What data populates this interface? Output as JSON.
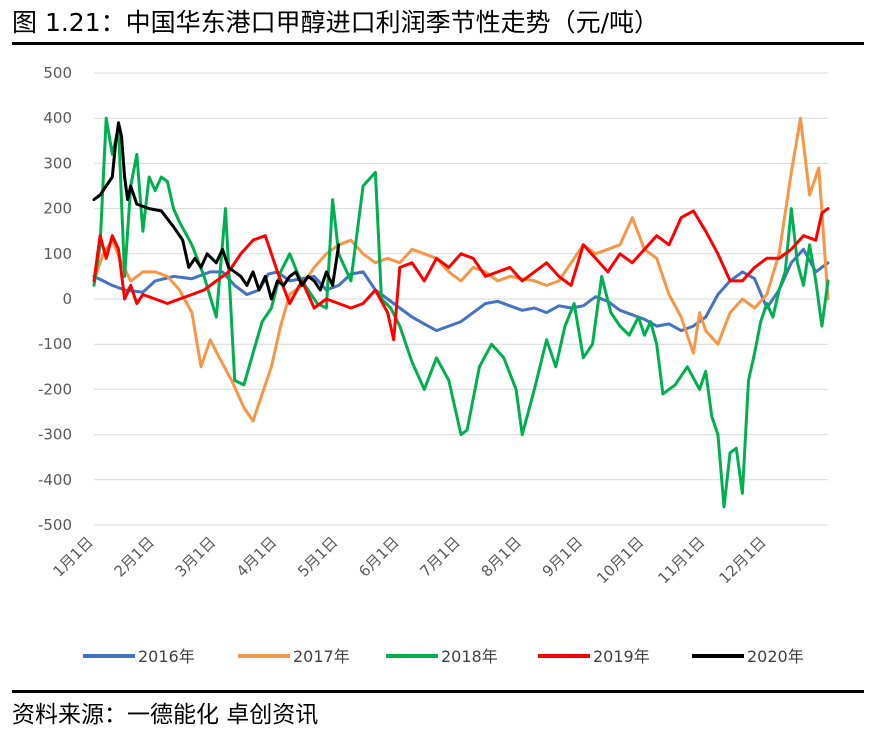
{
  "header": {
    "title": "图 1.21：中国华东港口甲醇进口利润季节性走势（元/吨）"
  },
  "footer": {
    "source": "资料来源：一德能化 卓创资讯"
  },
  "chart_data": {
    "type": "line",
    "title": "图 1.21：中国华东港口甲醇进口利润季节性走势（元/吨）",
    "xlabel": "",
    "ylabel": "",
    "ylim": [
      -500,
      500
    ],
    "yticks": [
      "500",
      "400",
      "300",
      "200",
      "100",
      "0",
      "-100",
      "-200",
      "-300",
      "-400",
      "-500"
    ],
    "xlim": [
      0,
      12
    ],
    "x_ticks": [
      "1月1日",
      "2月1日",
      "3月1日",
      "4月1日",
      "5月1日",
      "6月1日",
      "7月1日",
      "8月1日",
      "9月1日",
      "10月1日",
      "11月1日",
      "12月1日"
    ],
    "x_unit": "months elapsed since 1月1日",
    "grid": "horizontal",
    "legend_position": "bottom",
    "series": [
      {
        "name": "2016年",
        "color": "#4472C4",
        "points": [
          [
            0.0,
            50
          ],
          [
            0.15,
            40
          ],
          [
            0.3,
            30
          ],
          [
            0.5,
            20
          ],
          [
            0.8,
            15
          ],
          [
            1.0,
            40
          ],
          [
            1.3,
            50
          ],
          [
            1.6,
            45
          ],
          [
            1.9,
            60
          ],
          [
            2.1,
            60
          ],
          [
            2.3,
            30
          ],
          [
            2.5,
            10
          ],
          [
            2.7,
            20
          ],
          [
            2.85,
            55
          ],
          [
            3.0,
            60
          ],
          [
            3.2,
            40
          ],
          [
            3.4,
            45
          ],
          [
            3.6,
            50
          ],
          [
            3.8,
            20
          ],
          [
            4.0,
            30
          ],
          [
            4.2,
            55
          ],
          [
            4.4,
            60
          ],
          [
            4.6,
            20
          ],
          [
            4.8,
            0
          ],
          [
            5.0,
            -20
          ],
          [
            5.2,
            -40
          ],
          [
            5.4,
            -55
          ],
          [
            5.6,
            -70
          ],
          [
            5.8,
            -60
          ],
          [
            6.0,
            -50
          ],
          [
            6.2,
            -30
          ],
          [
            6.4,
            -10
          ],
          [
            6.6,
            -5
          ],
          [
            6.8,
            -15
          ],
          [
            7.0,
            -25
          ],
          [
            7.2,
            -20
          ],
          [
            7.4,
            -30
          ],
          [
            7.6,
            -15
          ],
          [
            7.8,
            -20
          ],
          [
            8.0,
            -15
          ],
          [
            8.2,
            5
          ],
          [
            8.4,
            -5
          ],
          [
            8.6,
            -25
          ],
          [
            8.8,
            -35
          ],
          [
            9.0,
            -45
          ],
          [
            9.2,
            -60
          ],
          [
            9.4,
            -55
          ],
          [
            9.6,
            -70
          ],
          [
            9.8,
            -60
          ],
          [
            10.0,
            -40
          ],
          [
            10.2,
            10
          ],
          [
            10.4,
            40
          ],
          [
            10.6,
            60
          ],
          [
            10.8,
            45
          ],
          [
            11.0,
            -20
          ],
          [
            11.2,
            20
          ],
          [
            11.4,
            80
          ],
          [
            11.6,
            110
          ],
          [
            11.8,
            60
          ],
          [
            12.0,
            80
          ]
        ]
      },
      {
        "name": "2017年",
        "color": "#F79646",
        "points": [
          [
            0.0,
            40
          ],
          [
            0.15,
            100
          ],
          [
            0.3,
            130
          ],
          [
            0.45,
            80
          ],
          [
            0.6,
            40
          ],
          [
            0.8,
            60
          ],
          [
            1.0,
            60
          ],
          [
            1.2,
            50
          ],
          [
            1.4,
            20
          ],
          [
            1.6,
            -30
          ],
          [
            1.75,
            -150
          ],
          [
            1.9,
            -90
          ],
          [
            2.05,
            -130
          ],
          [
            2.25,
            -180
          ],
          [
            2.45,
            -240
          ],
          [
            2.6,
            -270
          ],
          [
            2.75,
            -210
          ],
          [
            2.9,
            -150
          ],
          [
            3.05,
            -60
          ],
          [
            3.2,
            10
          ],
          [
            3.4,
            30
          ],
          [
            3.6,
            70
          ],
          [
            3.8,
            100
          ],
          [
            4.0,
            120
          ],
          [
            4.2,
            130
          ],
          [
            4.4,
            100
          ],
          [
            4.6,
            80
          ],
          [
            4.8,
            90
          ],
          [
            5.0,
            80
          ],
          [
            5.2,
            110
          ],
          [
            5.4,
            100
          ],
          [
            5.6,
            90
          ],
          [
            5.8,
            60
          ],
          [
            6.0,
            40
          ],
          [
            6.2,
            70
          ],
          [
            6.4,
            60
          ],
          [
            6.6,
            40
          ],
          [
            6.8,
            50
          ],
          [
            7.0,
            45
          ],
          [
            7.2,
            40
          ],
          [
            7.4,
            30
          ],
          [
            7.6,
            40
          ],
          [
            7.8,
            80
          ],
          [
            8.0,
            120
          ],
          [
            8.2,
            100
          ],
          [
            8.4,
            110
          ],
          [
            8.6,
            120
          ],
          [
            8.8,
            180
          ],
          [
            9.0,
            110
          ],
          [
            9.2,
            90
          ],
          [
            9.4,
            10
          ],
          [
            9.6,
            -40
          ],
          [
            9.8,
            -120
          ],
          [
            9.9,
            -30
          ],
          [
            10.0,
            -70
          ],
          [
            10.2,
            -100
          ],
          [
            10.4,
            -30
          ],
          [
            10.6,
            0
          ],
          [
            10.8,
            -20
          ],
          [
            11.0,
            10
          ],
          [
            11.2,
            100
          ],
          [
            11.4,
            280
          ],
          [
            11.55,
            400
          ],
          [
            11.7,
            230
          ],
          [
            11.85,
            290
          ],
          [
            12.0,
            0
          ]
        ]
      },
      {
        "name": "2018年",
        "color": "#00B050",
        "points": [
          [
            0.0,
            30
          ],
          [
            0.1,
            120
          ],
          [
            0.2,
            400
          ],
          [
            0.3,
            320
          ],
          [
            0.4,
            380
          ],
          [
            0.5,
            50
          ],
          [
            0.6,
            250
          ],
          [
            0.7,
            320
          ],
          [
            0.8,
            150
          ],
          [
            0.9,
            270
          ],
          [
            1.0,
            240
          ],
          [
            1.1,
            270
          ],
          [
            1.2,
            260
          ],
          [
            1.3,
            200
          ],
          [
            1.4,
            170
          ],
          [
            1.6,
            120
          ],
          [
            1.8,
            50
          ],
          [
            2.0,
            -40
          ],
          [
            2.15,
            200
          ],
          [
            2.3,
            -180
          ],
          [
            2.45,
            -190
          ],
          [
            2.6,
            -120
          ],
          [
            2.75,
            -50
          ],
          [
            2.9,
            -20
          ],
          [
            3.05,
            60
          ],
          [
            3.2,
            100
          ],
          [
            3.35,
            50
          ],
          [
            3.5,
            20
          ],
          [
            3.65,
            -10
          ],
          [
            3.8,
            -20
          ],
          [
            3.9,
            220
          ],
          [
            4.0,
            100
          ],
          [
            4.2,
            40
          ],
          [
            4.4,
            250
          ],
          [
            4.6,
            280
          ],
          [
            4.7,
            0
          ],
          [
            4.85,
            -20
          ],
          [
            5.0,
            -60
          ],
          [
            5.2,
            -140
          ],
          [
            5.4,
            -200
          ],
          [
            5.6,
            -130
          ],
          [
            5.8,
            -180
          ],
          [
            6.0,
            -300
          ],
          [
            6.1,
            -290
          ],
          [
            6.3,
            -150
          ],
          [
            6.5,
            -100
          ],
          [
            6.7,
            -130
          ],
          [
            6.9,
            -200
          ],
          [
            7.0,
            -300
          ],
          [
            7.2,
            -200
          ],
          [
            7.4,
            -90
          ],
          [
            7.55,
            -150
          ],
          [
            7.7,
            -60
          ],
          [
            7.85,
            -10
          ],
          [
            8.0,
            -130
          ],
          [
            8.15,
            -100
          ],
          [
            8.3,
            50
          ],
          [
            8.45,
            -30
          ],
          [
            8.6,
            -60
          ],
          [
            8.75,
            -80
          ],
          [
            8.9,
            -40
          ],
          [
            9.0,
            -80
          ],
          [
            9.1,
            -50
          ],
          [
            9.2,
            -100
          ],
          [
            9.3,
            -210
          ],
          [
            9.5,
            -190
          ],
          [
            9.7,
            -150
          ],
          [
            9.9,
            -200
          ],
          [
            10.0,
            -160
          ],
          [
            10.1,
            -260
          ],
          [
            10.2,
            -300
          ],
          [
            10.3,
            -460
          ],
          [
            10.4,
            -340
          ],
          [
            10.5,
            -330
          ],
          [
            10.6,
            -430
          ],
          [
            10.7,
            -180
          ],
          [
            10.8,
            -120
          ],
          [
            10.9,
            -50
          ],
          [
            11.0,
            -10
          ],
          [
            11.1,
            -40
          ],
          [
            11.2,
            20
          ],
          [
            11.3,
            60
          ],
          [
            11.4,
            200
          ],
          [
            11.5,
            80
          ],
          [
            11.6,
            30
          ],
          [
            11.7,
            120
          ],
          [
            11.8,
            40
          ],
          [
            11.9,
            -60
          ],
          [
            12.0,
            40
          ]
        ]
      },
      {
        "name": "2019年",
        "color": "#FF0000",
        "points": [
          [
            0.0,
            40
          ],
          [
            0.1,
            140
          ],
          [
            0.2,
            90
          ],
          [
            0.3,
            140
          ],
          [
            0.4,
            110
          ],
          [
            0.5,
            0
          ],
          [
            0.6,
            30
          ],
          [
            0.7,
            -10
          ],
          [
            0.8,
            10
          ],
          [
            1.0,
            0
          ],
          [
            1.2,
            -10
          ],
          [
            1.4,
            0
          ],
          [
            1.6,
            10
          ],
          [
            1.8,
            20
          ],
          [
            2.0,
            40
          ],
          [
            2.2,
            60
          ],
          [
            2.4,
            100
          ],
          [
            2.6,
            130
          ],
          [
            2.8,
            140
          ],
          [
            3.0,
            60
          ],
          [
            3.2,
            -10
          ],
          [
            3.4,
            40
          ],
          [
            3.6,
            -20
          ],
          [
            3.8,
            0
          ],
          [
            4.0,
            -10
          ],
          [
            4.2,
            -20
          ],
          [
            4.4,
            -10
          ],
          [
            4.6,
            20
          ],
          [
            4.8,
            -30
          ],
          [
            4.9,
            -90
          ],
          [
            5.0,
            70
          ],
          [
            5.2,
            80
          ],
          [
            5.4,
            40
          ],
          [
            5.6,
            90
          ],
          [
            5.8,
            70
          ],
          [
            6.0,
            100
          ],
          [
            6.2,
            90
          ],
          [
            6.4,
            50
          ],
          [
            6.6,
            60
          ],
          [
            6.8,
            70
          ],
          [
            7.0,
            40
          ],
          [
            7.2,
            60
          ],
          [
            7.4,
            80
          ],
          [
            7.6,
            50
          ],
          [
            7.8,
            30
          ],
          [
            8.0,
            120
          ],
          [
            8.2,
            90
          ],
          [
            8.4,
            60
          ],
          [
            8.6,
            100
          ],
          [
            8.8,
            80
          ],
          [
            9.0,
            110
          ],
          [
            9.2,
            140
          ],
          [
            9.4,
            120
          ],
          [
            9.6,
            180
          ],
          [
            9.8,
            195
          ],
          [
            10.0,
            150
          ],
          [
            10.2,
            100
          ],
          [
            10.4,
            40
          ],
          [
            10.6,
            40
          ],
          [
            10.8,
            70
          ],
          [
            11.0,
            90
          ],
          [
            11.2,
            90
          ],
          [
            11.4,
            110
          ],
          [
            11.6,
            140
          ],
          [
            11.8,
            130
          ],
          [
            11.9,
            190
          ],
          [
            12.0,
            200
          ]
        ]
      },
      {
        "name": "2020年",
        "color": "#000000",
        "points": [
          [
            0.0,
            220
          ],
          [
            0.1,
            230
          ],
          [
            0.2,
            250
          ],
          [
            0.3,
            270
          ],
          [
            0.35,
            340
          ],
          [
            0.4,
            390
          ],
          [
            0.45,
            360
          ],
          [
            0.5,
            270
          ],
          [
            0.55,
            220
          ],
          [
            0.6,
            250
          ],
          [
            0.7,
            210
          ],
          [
            0.9,
            200
          ],
          [
            1.1,
            195
          ],
          [
            1.3,
            160
          ],
          [
            1.45,
            130
          ],
          [
            1.55,
            70
          ],
          [
            1.65,
            90
          ],
          [
            1.75,
            70
          ],
          [
            1.85,
            100
          ],
          [
            2.0,
            80
          ],
          [
            2.1,
            110
          ],
          [
            2.2,
            70
          ],
          [
            2.3,
            60
          ],
          [
            2.4,
            50
          ],
          [
            2.5,
            30
          ],
          [
            2.6,
            60
          ],
          [
            2.7,
            20
          ],
          [
            2.8,
            50
          ],
          [
            2.9,
            0
          ],
          [
            3.0,
            40
          ],
          [
            3.1,
            30
          ],
          [
            3.2,
            50
          ],
          [
            3.3,
            60
          ],
          [
            3.4,
            30
          ],
          [
            3.5,
            50
          ],
          [
            3.6,
            40
          ],
          [
            3.7,
            20
          ],
          [
            3.8,
            60
          ],
          [
            3.9,
            30
          ],
          [
            4.0,
            120
          ]
        ]
      }
    ]
  }
}
